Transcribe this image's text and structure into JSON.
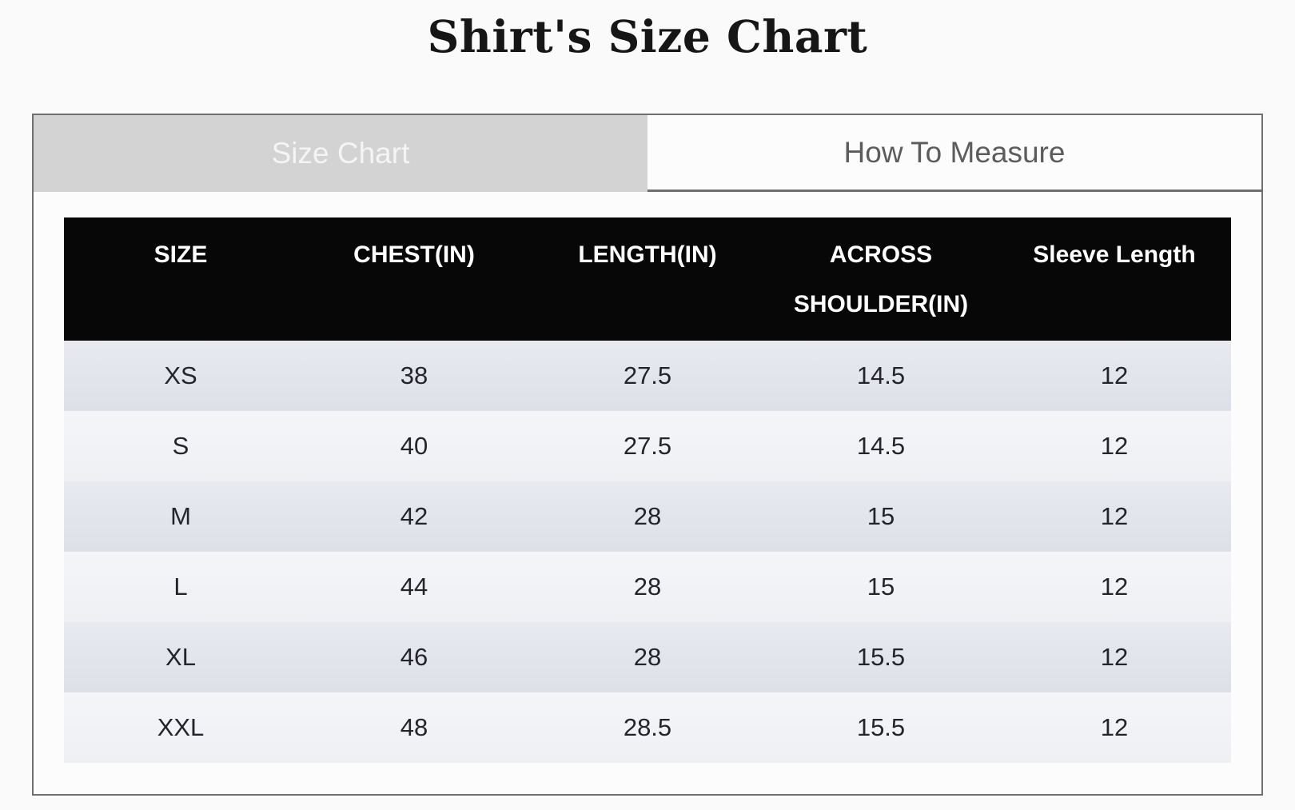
{
  "page": {
    "title": "Shirt's Size Chart"
  },
  "tabs": {
    "size_chart": "Size Chart",
    "how_to_measure": "How To Measure",
    "active_tab": "Size Chart"
  },
  "table": {
    "columns": [
      "SIZE",
      "CHEST(IN)",
      "LENGTH(IN)",
      "ACROSS SHOULDER(IN)",
      "Sleeve Length"
    ],
    "rows": [
      [
        "XS",
        "38",
        "27.5",
        "14.5",
        "12"
      ],
      [
        "S",
        "40",
        "27.5",
        "14.5",
        "12"
      ],
      [
        "M",
        "42",
        "28",
        "15",
        "12"
      ],
      [
        "L",
        "44",
        "28",
        "15",
        "12"
      ],
      [
        "XL",
        "46",
        "28",
        "15.5",
        "12"
      ],
      [
        "XXL",
        "48",
        "28.5",
        "15.5",
        "12"
      ]
    ]
  },
  "colors": {
    "page_bg": "#fafafa",
    "panel_border": "#6f6f6f",
    "tab_active_bg": "#d3d3d3",
    "tab_active_text": "#f4f4f4",
    "tab_inactive_text": "#5c5c5c",
    "header_bg": "#070707",
    "header_text": "#ffffff",
    "row_dark": "#dee1e8",
    "row_light": "#f1f2f6"
  }
}
